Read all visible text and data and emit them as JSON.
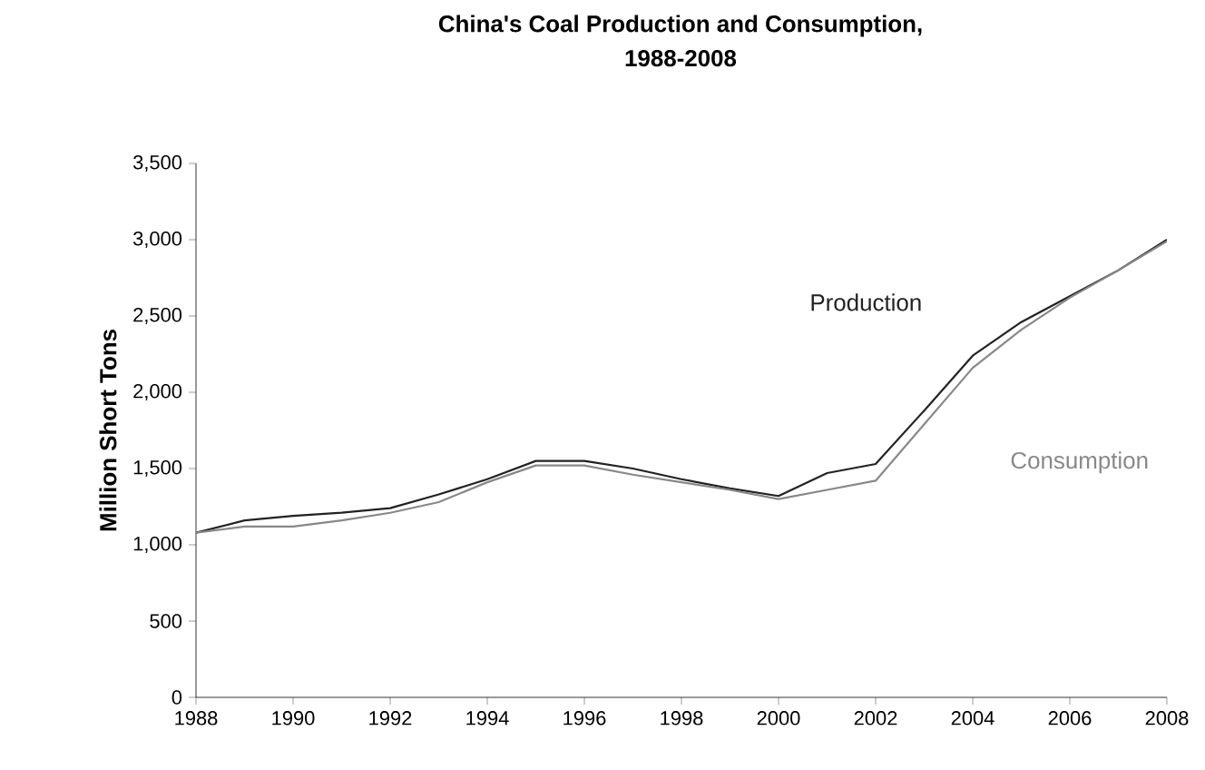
{
  "chart_data": {
    "type": "line",
    "title": "China's Coal Production and Consumption,\n1988-2008",
    "ylabel": "Million Short Tons",
    "x": [
      1988,
      1989,
      1990,
      1991,
      1992,
      1993,
      1994,
      1995,
      1996,
      1997,
      1998,
      1999,
      2000,
      2001,
      2002,
      2003,
      2004,
      2005,
      2006,
      2007,
      2008
    ],
    "series": [
      {
        "name": "Production",
        "color": "#222222",
        "values": [
          1080,
          1160,
          1190,
          1210,
          1240,
          1330,
          1430,
          1550,
          1550,
          1500,
          1430,
          1370,
          1320,
          1470,
          1530,
          1880,
          2240,
          2460,
          2630,
          2800,
          3000
        ]
      },
      {
        "name": "Consumption",
        "color": "#888888",
        "values": [
          1080,
          1120,
          1120,
          1160,
          1210,
          1280,
          1410,
          1520,
          1520,
          1460,
          1410,
          1360,
          1300,
          1360,
          1420,
          1790,
          2160,
          2410,
          2620,
          2800,
          2990
        ]
      }
    ],
    "xlim": [
      1988,
      2008
    ],
    "ylim": [
      0,
      3500
    ],
    "xticks": [
      1988,
      1990,
      1992,
      1994,
      1996,
      1998,
      2000,
      2002,
      2004,
      2006,
      2008
    ],
    "yticks": [
      {
        "value": 0,
        "label": "0"
      },
      {
        "value": 500,
        "label": "500"
      },
      {
        "value": 1000,
        "label": "1,000"
      },
      {
        "value": 1500,
        "label": "1,500"
      },
      {
        "value": 2000,
        "label": "2,000"
      },
      {
        "value": 2500,
        "label": "2,500"
      },
      {
        "value": 3000,
        "label": "3,000"
      },
      {
        "value": 3500,
        "label": "3,500"
      }
    ],
    "grid": false,
    "marker": "none",
    "line_style": "solid"
  }
}
